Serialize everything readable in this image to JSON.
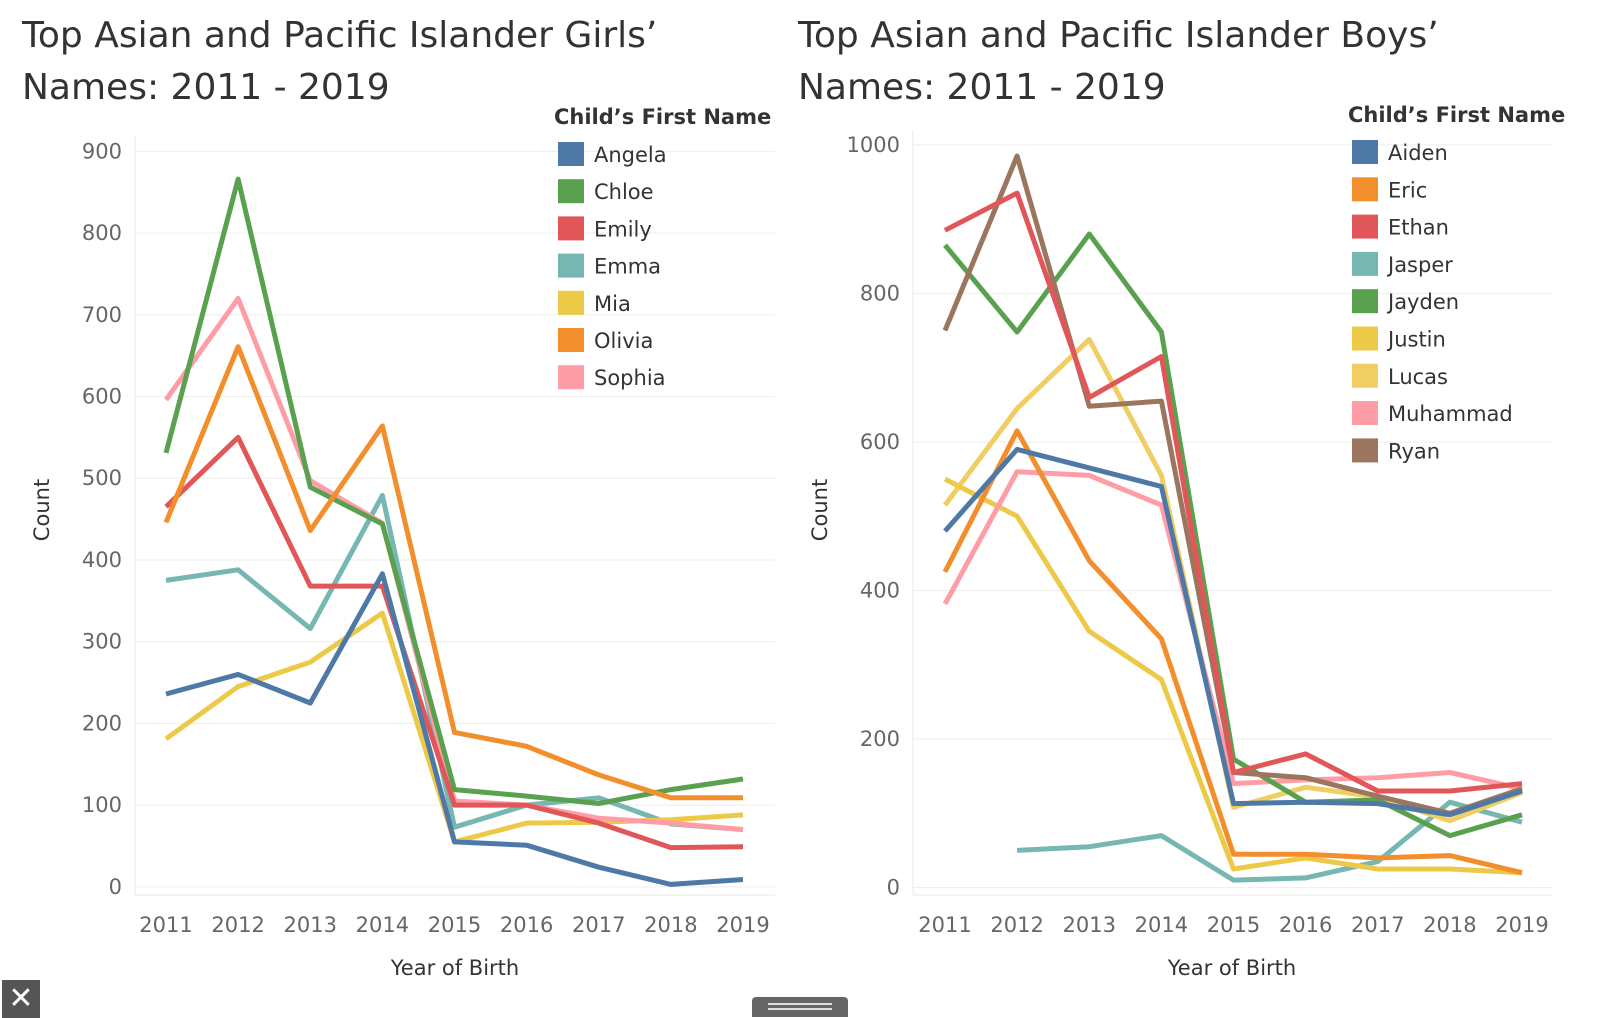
{
  "charts": [
    {
      "title_line1": "Top Asian and Pacific Islander Girls’",
      "title_line2": "Names: 2011 - 2019",
      "chart_data": {
        "type": "line",
        "title": "Top Asian and Pacific Islander Girls’ Names: 2011 - 2019",
        "xlabel": "Year of Birth",
        "ylabel": "Count",
        "x": [
          "2011",
          "2012",
          "2013",
          "2014",
          "2015",
          "2016",
          "2017",
          "2018",
          "2019"
        ],
        "yticks": [
          0,
          100,
          200,
          300,
          400,
          500,
          600,
          700,
          800,
          900
        ],
        "ylim": [
          -10,
          920
        ],
        "grid": true,
        "legend_title": "Child’s First Name",
        "legend_position": "top-right",
        "series": [
          {
            "name": "Emma",
            "color": "#76b7b2",
            "values": [
              375,
              388,
              316,
              479,
              73,
              100,
              109,
              77,
              70
            ]
          },
          {
            "name": "Mia",
            "color": "#edc948",
            "values": [
              181,
              245,
              275,
              335,
              55,
              78,
              79,
              82,
              88
            ]
          },
          {
            "name": "Sophia",
            "color": "#ff9da7",
            "values": [
              596,
              720,
              497,
              445,
              105,
              100,
              84,
              78,
              70
            ]
          },
          {
            "name": "Chloe",
            "color": "#59a14f",
            "values": [
              531,
              866,
              489,
              444,
              119,
              111,
              102,
              119,
              132
            ]
          },
          {
            "name": "Emily",
            "color": "#e15759",
            "values": [
              465,
              550,
              368,
              368,
              100,
              100,
              78,
              48,
              49
            ]
          },
          {
            "name": "Olivia",
            "color": "#f28e2b",
            "values": [
              446,
              661,
              436,
              564,
              189,
              172,
              137,
              109,
              109
            ]
          },
          {
            "name": "Angela",
            "color": "#4e79a7",
            "values": [
              236,
              260,
              225,
              383,
              55,
              51,
              24,
              3,
              9
            ]
          }
        ],
        "legend_order": [
          "Angela",
          "Chloe",
          "Emily",
          "Emma",
          "Mia",
          "Olivia",
          "Sophia"
        ]
      }
    },
    {
      "title_line1": "Top Asian and Pacific Islander Boys’",
      "title_line2": "Names: 2011 - 2019",
      "chart_data": {
        "type": "line",
        "title": "Top Asian and Pacific Islander Boys’ Names: 2011 - 2019",
        "xlabel": "Year of Birth",
        "ylabel": "Count",
        "x": [
          "2011",
          "2012",
          "2013",
          "2014",
          "2015",
          "2016",
          "2017",
          "2018",
          "2019"
        ],
        "yticks": [
          0,
          200,
          400,
          600,
          800,
          1000
        ],
        "ylim": [
          -10,
          1020
        ],
        "grid": true,
        "legend_title": "Child’s First Name",
        "legend_position": "top-right",
        "series": [
          {
            "name": "Jasper",
            "color": "#76b7b2",
            "values": [
              null,
              50,
              55,
              70,
              10,
              13,
              35,
              115,
              88
            ]
          },
          {
            "name": "Lucas",
            "color": "#f1ce63",
            "values": [
              515,
              645,
              738,
              555,
              108,
              135,
              122,
              90,
              128
            ]
          },
          {
            "name": "Justin",
            "color": "#edc948",
            "values": [
              550,
              500,
              345,
              280,
              25,
              40,
              25,
              25,
              20
            ]
          },
          {
            "name": "Muhammad",
            "color": "#ff9da7",
            "values": [
              382,
              560,
              555,
              515,
              140,
              145,
              148,
              155,
              133
            ]
          },
          {
            "name": "Eric",
            "color": "#f28e2b",
            "values": [
              425,
              615,
              440,
              335,
              45,
              45,
              40,
              43,
              20
            ]
          },
          {
            "name": "Jayden",
            "color": "#59a14f",
            "values": [
              865,
              748,
              880,
              748,
              173,
              115,
              118,
              70,
              98
            ]
          },
          {
            "name": "Ryan",
            "color": "#9c755f",
            "values": [
              750,
              985,
              648,
              655,
              155,
              148,
              123,
              100,
              133
            ]
          },
          {
            "name": "Ethan",
            "color": "#e15759",
            "values": [
              885,
              935,
              660,
              715,
              155,
              180,
              130,
              130,
              140
            ]
          },
          {
            "name": "Aiden",
            "color": "#4e79a7",
            "values": [
              480,
              590,
              565,
              540,
              113,
              115,
              113,
              98,
              130
            ]
          }
        ],
        "legend_order": [
          "Aiden",
          "Eric",
          "Ethan",
          "Jasper",
          "Jayden",
          "Justin",
          "Lucas",
          "Muhammad",
          "Ryan"
        ]
      }
    }
  ],
  "controls": {
    "close_label": "✕"
  }
}
